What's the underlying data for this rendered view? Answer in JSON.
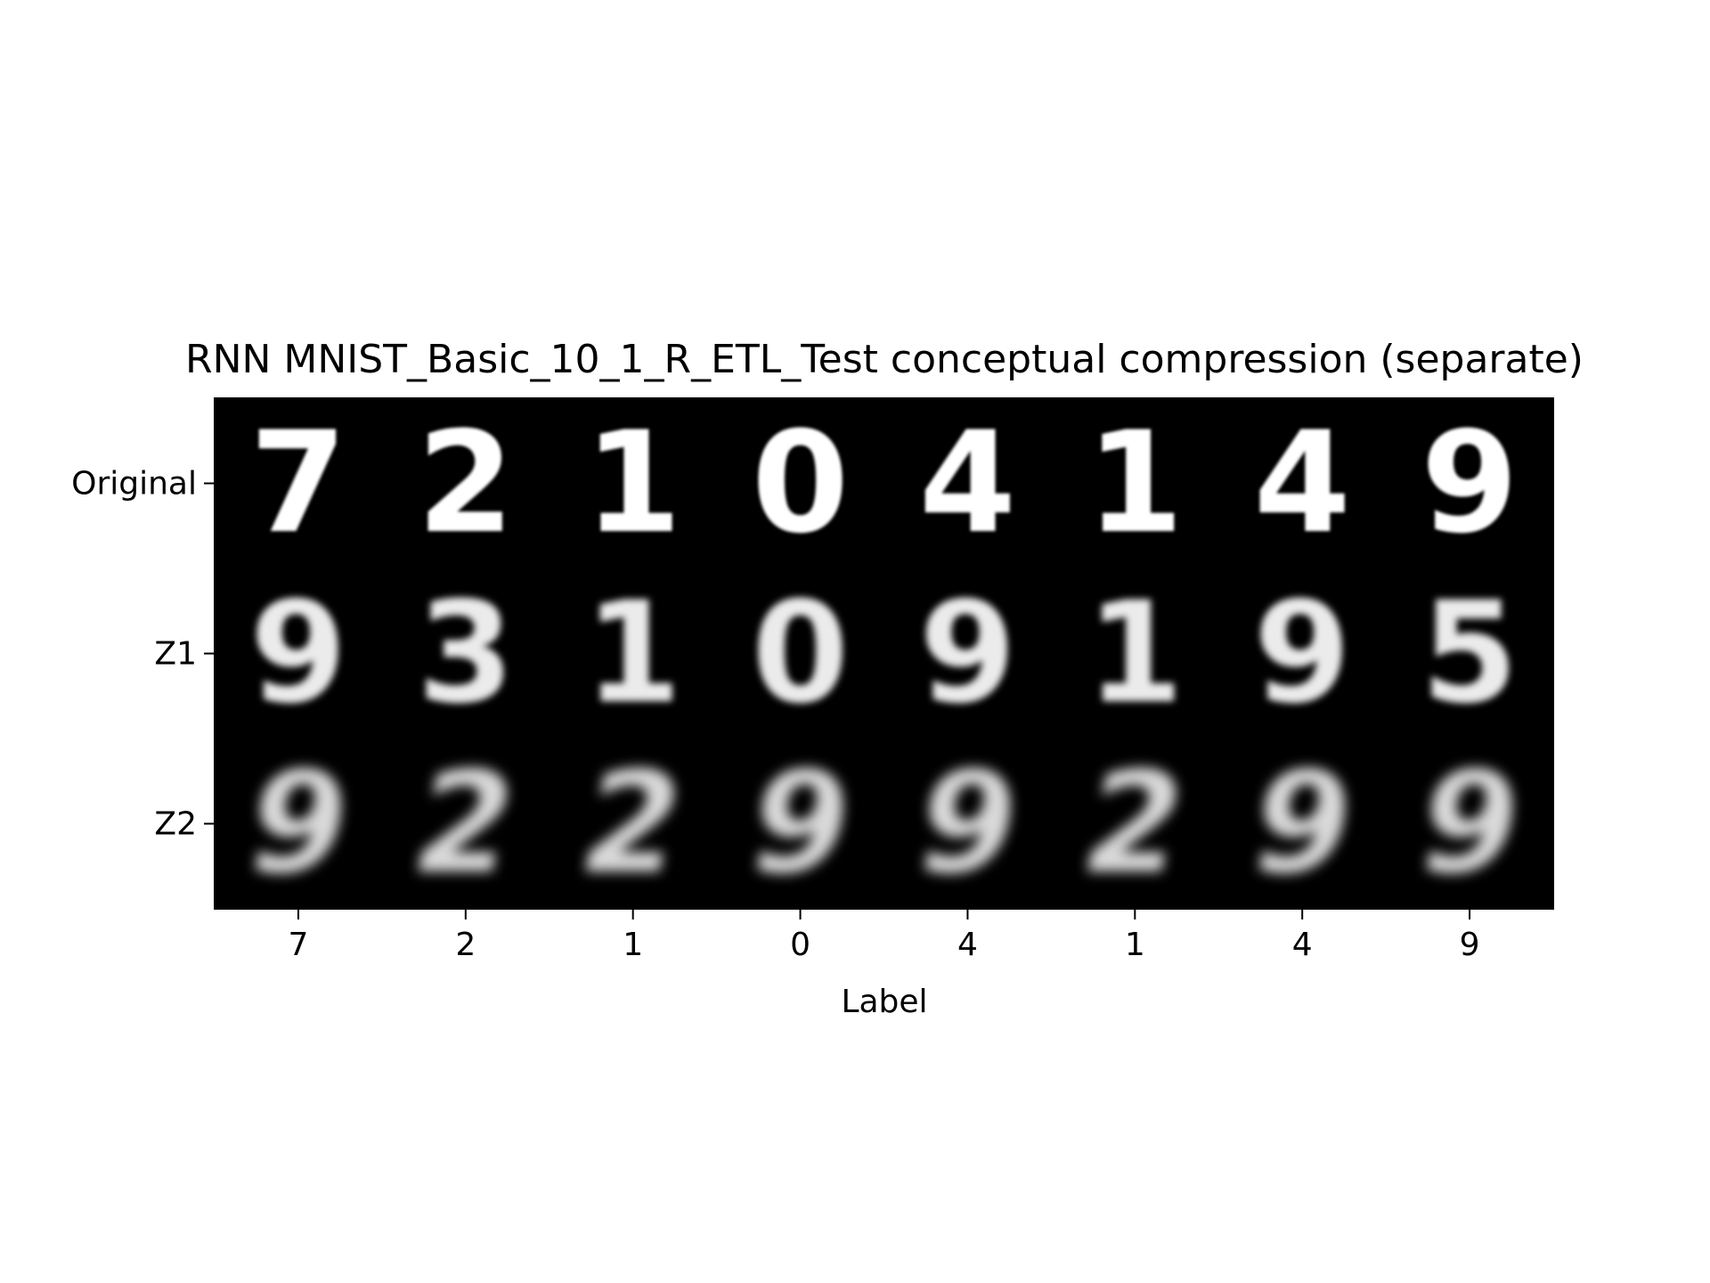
{
  "chart_data": {
    "type": "image-grid",
    "title": "RNN MNIST_Basic_10_1_R_ETL_Test conceptual compression (separate)",
    "xlabel": "Label",
    "ylabel": "",
    "row_labels": [
      "Original",
      "Z1",
      "Z2"
    ],
    "column_labels": [
      "7",
      "2",
      "1",
      "0",
      "4",
      "1",
      "4",
      "9"
    ],
    "rows": [
      {
        "name": "Original",
        "digits": [
          "7",
          "2",
          "1",
          "0",
          "4",
          "1",
          "4",
          "9"
        ]
      },
      {
        "name": "Z1",
        "digits": [
          "9",
          "3",
          "1",
          "0",
          "9",
          "1",
          "9",
          "5"
        ]
      },
      {
        "name": "Z2",
        "digits": [
          "9",
          "2",
          "2",
          "9",
          "9",
          "2",
          "9",
          "9"
        ]
      }
    ],
    "colors": {
      "background": "#000000",
      "foreground": "#ffffff"
    }
  }
}
